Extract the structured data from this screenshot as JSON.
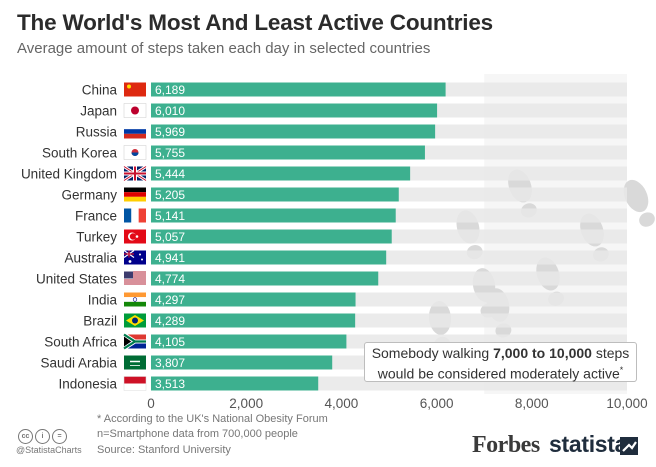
{
  "title": "The World's Most And Least Active Countries",
  "subtitle": "Average amount of steps taken each day in selected countries",
  "callout": {
    "pre": "Somebody walking ",
    "bold": "7,000 to 10,000",
    "post": " steps",
    "line2": "would be considered moderately active",
    "mark": "*"
  },
  "footnotes": {
    "note1": "* According to the UK's National Obesity Forum",
    "note2": "n=Smartphone data from 700,000 people",
    "source": "Source: Stanford University"
  },
  "cc_icons": [
    "cc",
    "i",
    "="
  ],
  "handle": "@StatistaCharts",
  "brands": {
    "forbes": "Forbes",
    "statista": "statista"
  },
  "colors": {
    "bar": "#3db08f",
    "track": "#e8e8e8",
    "shade": "#f6f6f6",
    "footprint": "#d9d9d9"
  },
  "chart_data": {
    "type": "bar",
    "orientation": "horizontal",
    "categories": [
      "China",
      "Japan",
      "Russia",
      "South Korea",
      "United Kingdom",
      "Germany",
      "France",
      "Turkey",
      "Australia",
      "United States",
      "India",
      "Brazil",
      "South Africa",
      "Saudi Arabia",
      "Indonesia"
    ],
    "values": [
      6189,
      6010,
      5969,
      5755,
      5444,
      5205,
      5141,
      5057,
      4941,
      4774,
      4297,
      4289,
      4105,
      3807,
      3513
    ],
    "value_labels": [
      "6,189",
      "6,010",
      "5,969",
      "5,755",
      "5,444",
      "5,205",
      "5,141",
      "5,057",
      "4,941",
      "4,774",
      "4,297",
      "4,289",
      "4,105",
      "3,807",
      "3,513"
    ],
    "flags": [
      "china-flag-icon",
      "japan-flag-icon",
      "russia-flag-icon",
      "south-korea-flag-icon",
      "united-kingdom-flag-icon",
      "germany-flag-icon",
      "france-flag-icon",
      "turkey-flag-icon",
      "australia-flag-icon",
      "united-states-flag-icon",
      "india-flag-icon",
      "brazil-flag-icon",
      "south-africa-flag-icon",
      "saudi-arabia-flag-icon",
      "indonesia-flag-icon"
    ],
    "xlim": [
      0,
      10000
    ],
    "xticks": [
      0,
      2000,
      4000,
      6000,
      8000,
      10000
    ],
    "xtick_labels": [
      "0",
      "2,000",
      "4,000",
      "6,000",
      "8,000",
      "10,000"
    ],
    "highlight_range": [
      7000,
      10000
    ],
    "grid": false,
    "legend": "none"
  }
}
